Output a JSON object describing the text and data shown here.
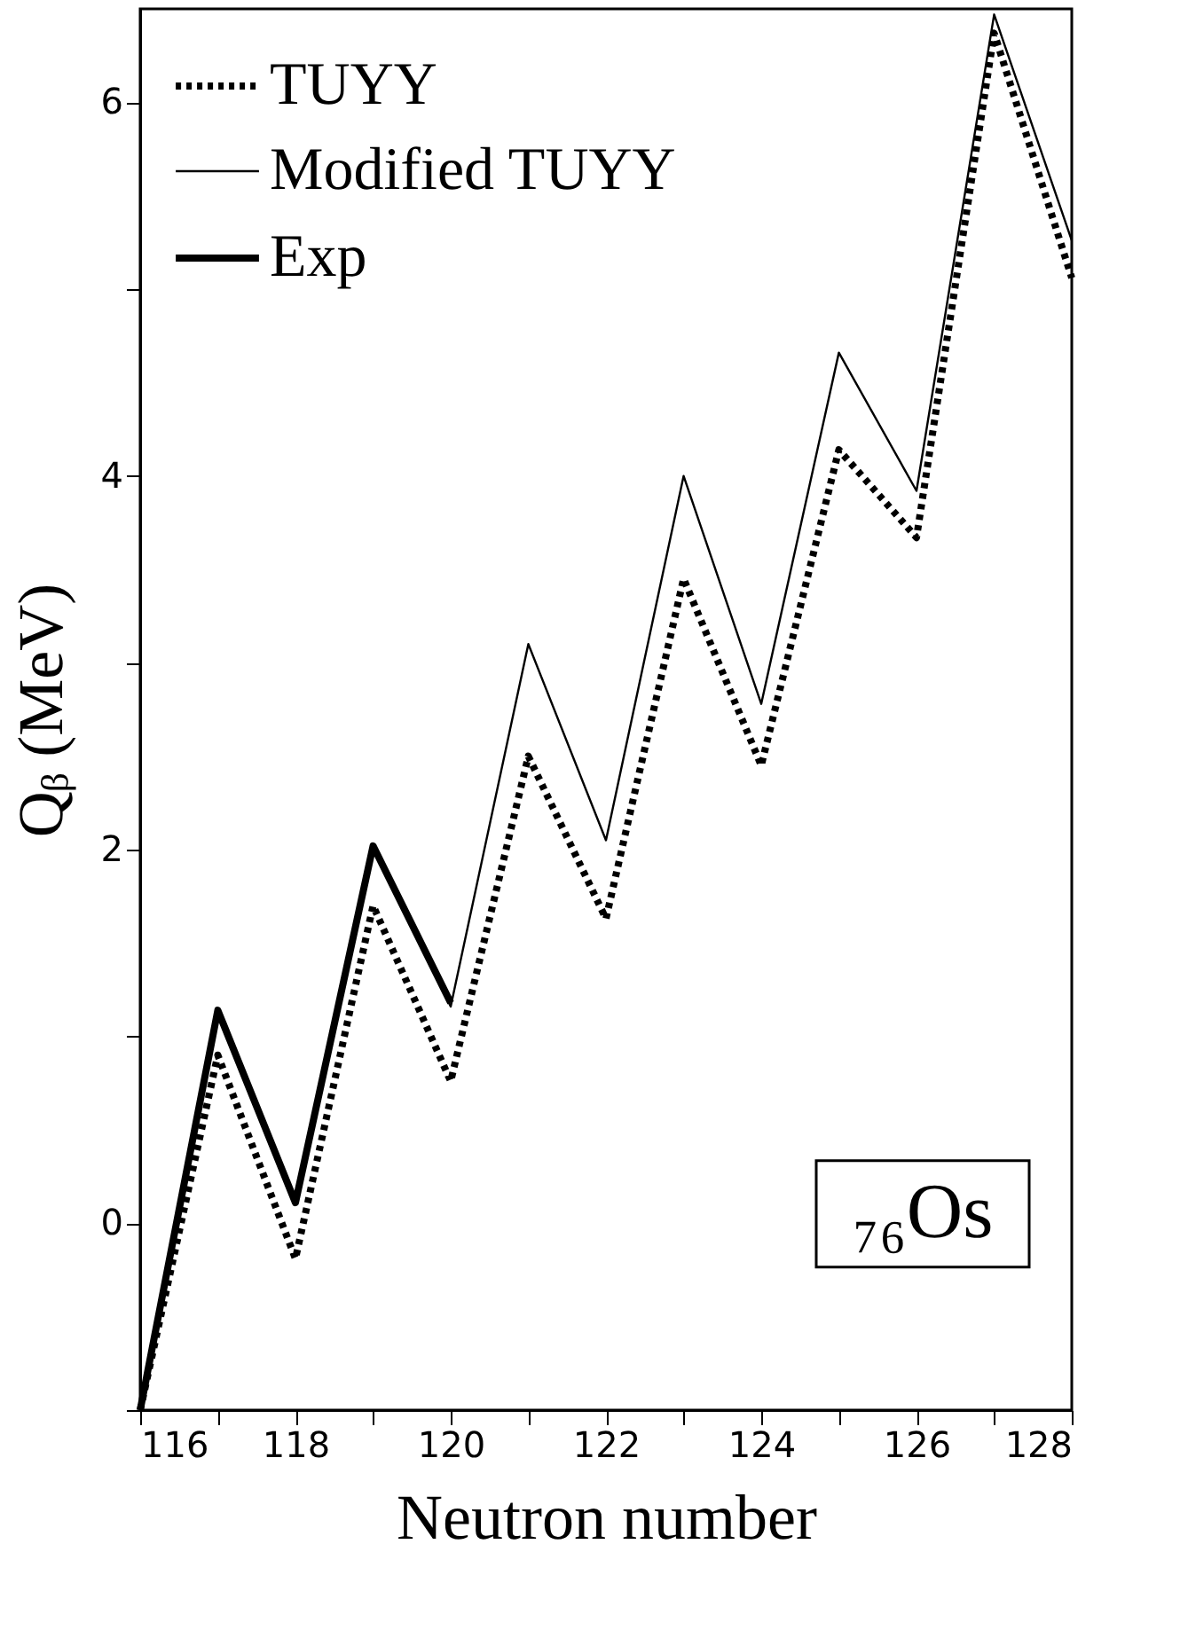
{
  "chart_data": {
    "type": "line",
    "xlabel": "Neutron number",
    "ylabel": "Qᵦ (MeV)",
    "x": [
      116,
      117,
      118,
      119,
      120,
      121,
      122,
      123,
      124,
      125,
      126,
      127,
      128
    ],
    "series": [
      {
        "name": "TUYY",
        "color": "#000000",
        "line_style": "dotted",
        "values": [
          -1.0,
          0.9,
          -0.19,
          1.7,
          0.76,
          2.5,
          1.63,
          3.45,
          2.45,
          4.14,
          3.67,
          6.37,
          5.06
        ]
      },
      {
        "name": "Modified TUYY",
        "color": "#000000",
        "line_style": "solid",
        "values": [
          -1.0,
          1.12,
          0.1,
          2.0,
          1.16,
          3.1,
          2.05,
          4.0,
          2.78,
          4.66,
          3.92,
          6.47,
          5.26
        ]
      },
      {
        "name": "Exp",
        "color": "#000000",
        "line_style": "solid",
        "x": [
          116,
          117,
          118,
          119,
          120
        ],
        "values": [
          -1.0,
          1.14,
          0.11,
          2.02,
          1.18
        ]
      }
    ],
    "xlim": [
      116,
      128
    ],
    "ylim": [
      -1,
      6.5
    ],
    "xticks": [
      116,
      {
        "value": 117,
        "label": null
      },
      118,
      {
        "value": 119,
        "label": null
      },
      120,
      {
        "value": 121,
        "label": null
      },
      122,
      {
        "value": 123,
        "label": null
      },
      124,
      {
        "value": 125,
        "label": null
      },
      126,
      {
        "value": 127,
        "label": null
      },
      128
    ],
    "yticks": [
      {
        "value": -1,
        "label": null
      },
      0,
      {
        "value": 1,
        "label": null
      },
      2,
      {
        "value": 3,
        "label": null
      },
      4,
      {
        "value": 5,
        "label": null
      },
      6
    ],
    "legend": "top left",
    "grid": false,
    "marker": "none",
    "annotations": [
      "₇₆Os"
    ]
  }
}
